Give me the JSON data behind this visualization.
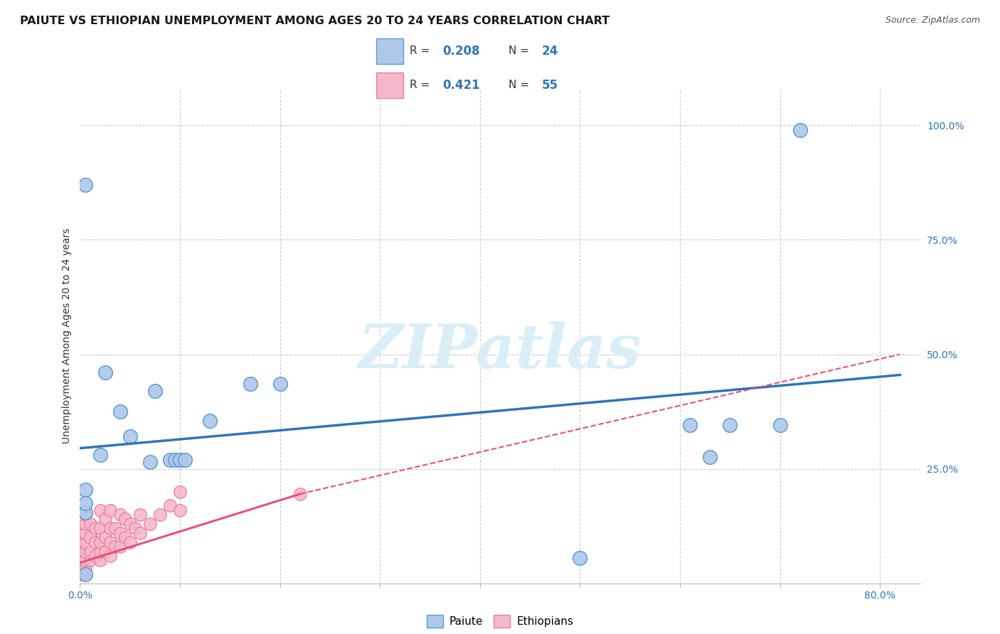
{
  "title": "PAIUTE VS ETHIOPIAN UNEMPLOYMENT AMONG AGES 20 TO 24 YEARS CORRELATION CHART",
  "source": "Source: ZipAtlas.com",
  "ylabel_text": "Unemployment Among Ages 20 to 24 years",
  "xlim": [
    0.0,
    0.84
  ],
  "ylim": [
    0.0,
    1.08
  ],
  "x_ticks": [
    0.0,
    0.1,
    0.2,
    0.3,
    0.4,
    0.5,
    0.6,
    0.7,
    0.8
  ],
  "y_ticks": [
    0.0,
    0.25,
    0.5,
    0.75,
    1.0
  ],
  "paiute_color": "#adc8e8",
  "paiute_edge_color": "#5b9bd5",
  "ethiopian_color": "#f5b8ca",
  "ethiopian_edge_color": "#e87fa0",
  "paiute_line_color": "#2e75b6",
  "ethiopian_line_color": "#e8507a",
  "legend_R_color": "#2e75b6",
  "watermark_color": "#daeef8",
  "background_color": "#ffffff",
  "grid_color": "#cccccc",
  "title_fontsize": 11.5,
  "axis_label_fontsize": 10,
  "tick_fontsize": 10,
  "paiute_R": "0.208",
  "paiute_N": "24",
  "ethiopian_R": "0.421",
  "ethiopian_N": "55",
  "paiute_scatter_x": [
    0.005,
    0.005,
    0.005,
    0.005,
    0.005,
    0.02,
    0.025,
    0.04,
    0.05,
    0.07,
    0.075,
    0.09,
    0.095,
    0.1,
    0.105,
    0.13,
    0.17,
    0.2,
    0.5,
    0.61,
    0.63,
    0.65,
    0.7,
    0.72
  ],
  "paiute_scatter_y": [
    0.87,
    0.02,
    0.155,
    0.205,
    0.175,
    0.28,
    0.46,
    0.375,
    0.32,
    0.265,
    0.42,
    0.27,
    0.27,
    0.27,
    0.27,
    0.355,
    0.435,
    0.435,
    0.055,
    0.345,
    0.275,
    0.345,
    0.345,
    0.99
  ],
  "ethiopian_scatter_x": [
    0.0,
    0.0,
    0.0,
    0.0,
    0.0,
    0.0,
    0.0,
    0.0,
    0.0,
    0.0,
    0.005,
    0.005,
    0.005,
    0.005,
    0.005,
    0.005,
    0.005,
    0.005,
    0.01,
    0.01,
    0.01,
    0.01,
    0.015,
    0.015,
    0.015,
    0.02,
    0.02,
    0.02,
    0.02,
    0.02,
    0.025,
    0.025,
    0.025,
    0.03,
    0.03,
    0.03,
    0.03,
    0.035,
    0.035,
    0.04,
    0.04,
    0.04,
    0.045,
    0.045,
    0.05,
    0.05,
    0.055,
    0.06,
    0.06,
    0.07,
    0.08,
    0.09,
    0.1,
    0.1,
    0.22
  ],
  "ethiopian_scatter_y": [
    0.02,
    0.03,
    0.04,
    0.05,
    0.06,
    0.07,
    0.08,
    0.09,
    0.1,
    0.11,
    0.02,
    0.03,
    0.05,
    0.07,
    0.09,
    0.11,
    0.13,
    0.15,
    0.05,
    0.07,
    0.1,
    0.13,
    0.06,
    0.09,
    0.12,
    0.05,
    0.07,
    0.09,
    0.12,
    0.16,
    0.07,
    0.1,
    0.14,
    0.06,
    0.09,
    0.12,
    0.16,
    0.08,
    0.12,
    0.08,
    0.11,
    0.15,
    0.1,
    0.14,
    0.09,
    0.13,
    0.12,
    0.11,
    0.15,
    0.13,
    0.15,
    0.17,
    0.16,
    0.2,
    0.195
  ],
  "paiute_line_x0": 0.0,
  "paiute_line_y0": 0.295,
  "paiute_line_x1": 0.82,
  "paiute_line_y1": 0.455,
  "ethiopian_line_solid_x0": 0.0,
  "ethiopian_line_solid_y0": 0.045,
  "ethiopian_line_solid_x1": 0.22,
  "ethiopian_line_solid_y1": 0.195,
  "ethiopian_line_dash_x0": 0.22,
  "ethiopian_line_dash_y0": 0.195,
  "ethiopian_line_dash_x1": 0.82,
  "ethiopian_line_dash_y1": 0.5
}
